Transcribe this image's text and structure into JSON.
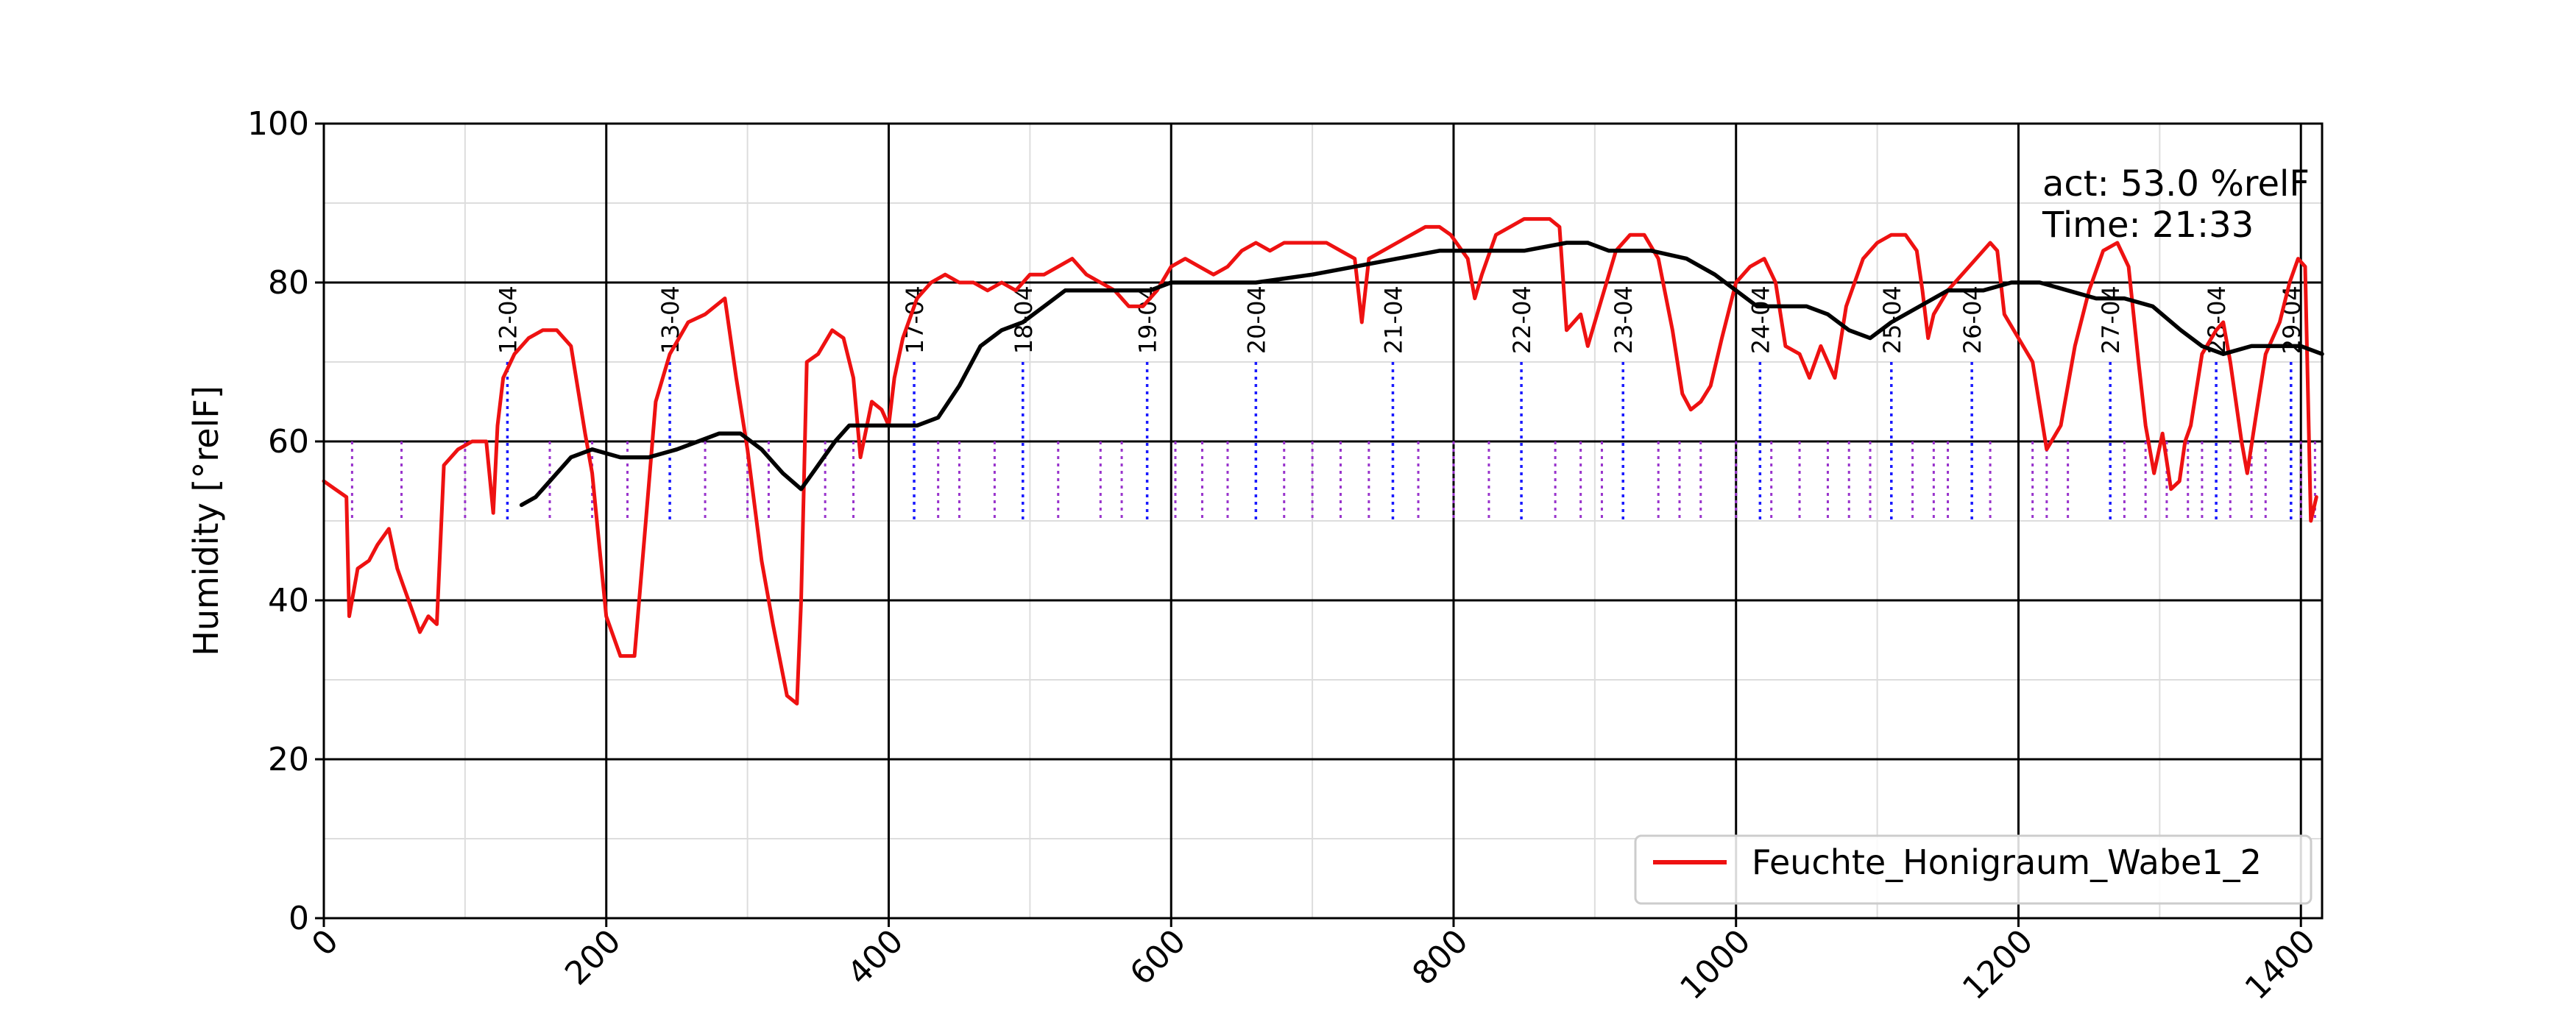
{
  "chart_data": {
    "type": "line",
    "title": "",
    "xlabel": "",
    "ylabel": "Humidity [°relF]",
    "xlim": [
      0,
      1415
    ],
    "ylim": [
      0,
      100
    ],
    "x_ticks": [
      0,
      200,
      400,
      600,
      800,
      1000,
      1200,
      1400
    ],
    "y_ticks": [
      0,
      20,
      40,
      60,
      80,
      100
    ],
    "grid": true,
    "legend_position": "lower-right",
    "colors": {
      "series": "#ee1111",
      "trend": "#000000",
      "day_marker": "#1a1aff",
      "hour_marker": "#9933cc"
    },
    "annotation": {
      "act": "act: 53.0 %relF",
      "time": "Time: 21:33"
    },
    "series": [
      {
        "name": "Feuchte_Honigraum_Wabe1_2",
        "color": "#ee1111",
        "points": [
          [
            0,
            55
          ],
          [
            8,
            54
          ],
          [
            16,
            53
          ],
          [
            18,
            38
          ],
          [
            24,
            44
          ],
          [
            32,
            45
          ],
          [
            38,
            47
          ],
          [
            46,
            49
          ],
          [
            52,
            44
          ],
          [
            56,
            42
          ],
          [
            62,
            39
          ],
          [
            68,
            36
          ],
          [
            74,
            38
          ],
          [
            80,
            37
          ],
          [
            85,
            57
          ],
          [
            95,
            59
          ],
          [
            105,
            60
          ],
          [
            115,
            60
          ],
          [
            120,
            51
          ],
          [
            123,
            62
          ],
          [
            127,
            68
          ],
          [
            135,
            71
          ],
          [
            145,
            73
          ],
          [
            155,
            74
          ],
          [
            165,
            74
          ],
          [
            175,
            72
          ],
          [
            185,
            61
          ],
          [
            190,
            56
          ],
          [
            200,
            38
          ],
          [
            210,
            33
          ],
          [
            220,
            33
          ],
          [
            228,
            50
          ],
          [
            235,
            65
          ],
          [
            245,
            71
          ],
          [
            258,
            75
          ],
          [
            270,
            76
          ],
          [
            284,
            78
          ],
          [
            292,
            68
          ],
          [
            300,
            59
          ],
          [
            310,
            45
          ],
          [
            318,
            37
          ],
          [
            328,
            28
          ],
          [
            335,
            27
          ],
          [
            338,
            40
          ],
          [
            342,
            70
          ],
          [
            350,
            71
          ],
          [
            360,
            74
          ],
          [
            368,
            73
          ],
          [
            375,
            68
          ],
          [
            380,
            58
          ],
          [
            388,
            65
          ],
          [
            395,
            64
          ],
          [
            400,
            62
          ],
          [
            404,
            68
          ],
          [
            410,
            73
          ],
          [
            420,
            78
          ],
          [
            430,
            80
          ],
          [
            440,
            81
          ],
          [
            450,
            80
          ],
          [
            460,
            80
          ],
          [
            470,
            79
          ],
          [
            480,
            80
          ],
          [
            490,
            79
          ],
          [
            500,
            81
          ],
          [
            510,
            81
          ],
          [
            520,
            82
          ],
          [
            530,
            83
          ],
          [
            540,
            81
          ],
          [
            550,
            80
          ],
          [
            560,
            79
          ],
          [
            570,
            77
          ],
          [
            580,
            77
          ],
          [
            590,
            79
          ],
          [
            600,
            82
          ],
          [
            610,
            83
          ],
          [
            620,
            82
          ],
          [
            630,
            81
          ],
          [
            640,
            82
          ],
          [
            650,
            84
          ],
          [
            660,
            85
          ],
          [
            670,
            84
          ],
          [
            680,
            85
          ],
          [
            690,
            85
          ],
          [
            700,
            85
          ],
          [
            710,
            85
          ],
          [
            720,
            84
          ],
          [
            730,
            83
          ],
          [
            735,
            75
          ],
          [
            740,
            83
          ],
          [
            750,
            84
          ],
          [
            760,
            85
          ],
          [
            770,
            86
          ],
          [
            780,
            87
          ],
          [
            790,
            87
          ],
          [
            798,
            86
          ],
          [
            810,
            83
          ],
          [
            815,
            78
          ],
          [
            820,
            81
          ],
          [
            830,
            86
          ],
          [
            840,
            87
          ],
          [
            850,
            88
          ],
          [
            860,
            88
          ],
          [
            868,
            88
          ],
          [
            875,
            87
          ],
          [
            880,
            74
          ],
          [
            890,
            76
          ],
          [
            895,
            72
          ],
          [
            905,
            78
          ],
          [
            915,
            84
          ],
          [
            925,
            86
          ],
          [
            935,
            86
          ],
          [
            945,
            83
          ],
          [
            955,
            74
          ],
          [
            962,
            66
          ],
          [
            968,
            64
          ],
          [
            975,
            65
          ],
          [
            982,
            67
          ],
          [
            990,
            73
          ],
          [
            1000,
            80
          ],
          [
            1010,
            82
          ],
          [
            1020,
            83
          ],
          [
            1028,
            80
          ],
          [
            1035,
            72
          ],
          [
            1045,
            71
          ],
          [
            1052,
            68
          ],
          [
            1060,
            72
          ],
          [
            1070,
            68
          ],
          [
            1078,
            77
          ],
          [
            1090,
            83
          ],
          [
            1100,
            85
          ],
          [
            1110,
            86
          ],
          [
            1120,
            86
          ],
          [
            1128,
            84
          ],
          [
            1132,
            79
          ],
          [
            1136,
            73
          ],
          [
            1140,
            76
          ],
          [
            1150,
            79
          ],
          [
            1160,
            81
          ],
          [
            1170,
            83
          ],
          [
            1180,
            85
          ],
          [
            1185,
            84
          ],
          [
            1190,
            76
          ],
          [
            1200,
            73
          ],
          [
            1210,
            70
          ],
          [
            1220,
            59
          ],
          [
            1230,
            62
          ],
          [
            1240,
            72
          ],
          [
            1250,
            79
          ],
          [
            1260,
            84
          ],
          [
            1270,
            85
          ],
          [
            1278,
            82
          ],
          [
            1285,
            70
          ],
          [
            1290,
            62
          ],
          [
            1296,
            56
          ],
          [
            1302,
            61
          ],
          [
            1308,
            54
          ],
          [
            1314,
            55
          ],
          [
            1318,
            60
          ],
          [
            1322,
            62
          ],
          [
            1330,
            71
          ],
          [
            1340,
            74
          ],
          [
            1345,
            75
          ],
          [
            1350,
            70
          ],
          [
            1358,
            60
          ],
          [
            1362,
            56
          ],
          [
            1368,
            63
          ],
          [
            1375,
            71
          ],
          [
            1385,
            75
          ],
          [
            1392,
            80
          ],
          [
            1398,
            83
          ],
          [
            1403,
            82
          ],
          [
            1407,
            50
          ],
          [
            1411,
            53
          ]
        ]
      },
      {
        "name": "",
        "color": "#000000",
        "points": [
          [
            140,
            52
          ],
          [
            150,
            53
          ],
          [
            160,
            55
          ],
          [
            175,
            58
          ],
          [
            190,
            59
          ],
          [
            210,
            58
          ],
          [
            230,
            58
          ],
          [
            250,
            59
          ],
          [
            265,
            60
          ],
          [
            280,
            61
          ],
          [
            295,
            61
          ],
          [
            310,
            59
          ],
          [
            325,
            56
          ],
          [
            338,
            54
          ],
          [
            350,
            57
          ],
          [
            362,
            60
          ],
          [
            372,
            62
          ],
          [
            385,
            62
          ],
          [
            400,
            62
          ],
          [
            420,
            62
          ],
          [
            435,
            63
          ],
          [
            450,
            67
          ],
          [
            465,
            72
          ],
          [
            480,
            74
          ],
          [
            495,
            75
          ],
          [
            510,
            77
          ],
          [
            525,
            79
          ],
          [
            545,
            79
          ],
          [
            565,
            79
          ],
          [
            585,
            79
          ],
          [
            600,
            80
          ],
          [
            630,
            80
          ],
          [
            660,
            80
          ],
          [
            700,
            81
          ],
          [
            730,
            82
          ],
          [
            760,
            83
          ],
          [
            790,
            84
          ],
          [
            820,
            84
          ],
          [
            850,
            84
          ],
          [
            880,
            85
          ],
          [
            895,
            85
          ],
          [
            910,
            84
          ],
          [
            940,
            84
          ],
          [
            965,
            83
          ],
          [
            985,
            81
          ],
          [
            1000,
            79
          ],
          [
            1015,
            77
          ],
          [
            1030,
            77
          ],
          [
            1050,
            77
          ],
          [
            1065,
            76
          ],
          [
            1080,
            74
          ],
          [
            1095,
            73
          ],
          [
            1110,
            75
          ],
          [
            1130,
            77
          ],
          [
            1150,
            79
          ],
          [
            1175,
            79
          ],
          [
            1195,
            80
          ],
          [
            1215,
            80
          ],
          [
            1235,
            79
          ],
          [
            1255,
            78
          ],
          [
            1275,
            78
          ],
          [
            1295,
            77
          ],
          [
            1315,
            74
          ],
          [
            1330,
            72
          ],
          [
            1345,
            71
          ],
          [
            1365,
            72
          ],
          [
            1385,
            72
          ],
          [
            1400,
            72
          ],
          [
            1415,
            71
          ]
        ]
      }
    ],
    "day_markers": [
      {
        "x": 130,
        "label": "12-04"
      },
      {
        "x": 245,
        "label": "13-04"
      },
      {
        "x": 418,
        "label": "17-04"
      },
      {
        "x": 495,
        "label": "18-04"
      },
      {
        "x": 583,
        "label": "19-04"
      },
      {
        "x": 660,
        "label": "20-04"
      },
      {
        "x": 757,
        "label": "21-04"
      },
      {
        "x": 848,
        "label": "22-04"
      },
      {
        "x": 920,
        "label": "23-04"
      },
      {
        "x": 1017,
        "label": "24-04"
      },
      {
        "x": 1110,
        "label": "25-04"
      },
      {
        "x": 1167,
        "label": "26-04"
      },
      {
        "x": 1265,
        "label": "27-04"
      },
      {
        "x": 1340,
        "label": "28-04"
      },
      {
        "x": 1393,
        "label": "29-04"
      }
    ],
    "hour_markers": [
      20,
      55,
      100,
      160,
      190,
      215,
      270,
      300,
      315,
      355,
      375,
      435,
      450,
      475,
      520,
      550,
      565,
      603,
      622,
      640,
      680,
      700,
      720,
      740,
      775,
      800,
      825,
      872,
      890,
      905,
      945,
      960,
      975,
      1000,
      1025,
      1045,
      1065,
      1080,
      1095,
      1125,
      1140,
      1150,
      1180,
      1210,
      1220,
      1235,
      1275,
      1290,
      1305,
      1320,
      1330,
      1350,
      1365,
      1375,
      1400,
      1410
    ]
  }
}
